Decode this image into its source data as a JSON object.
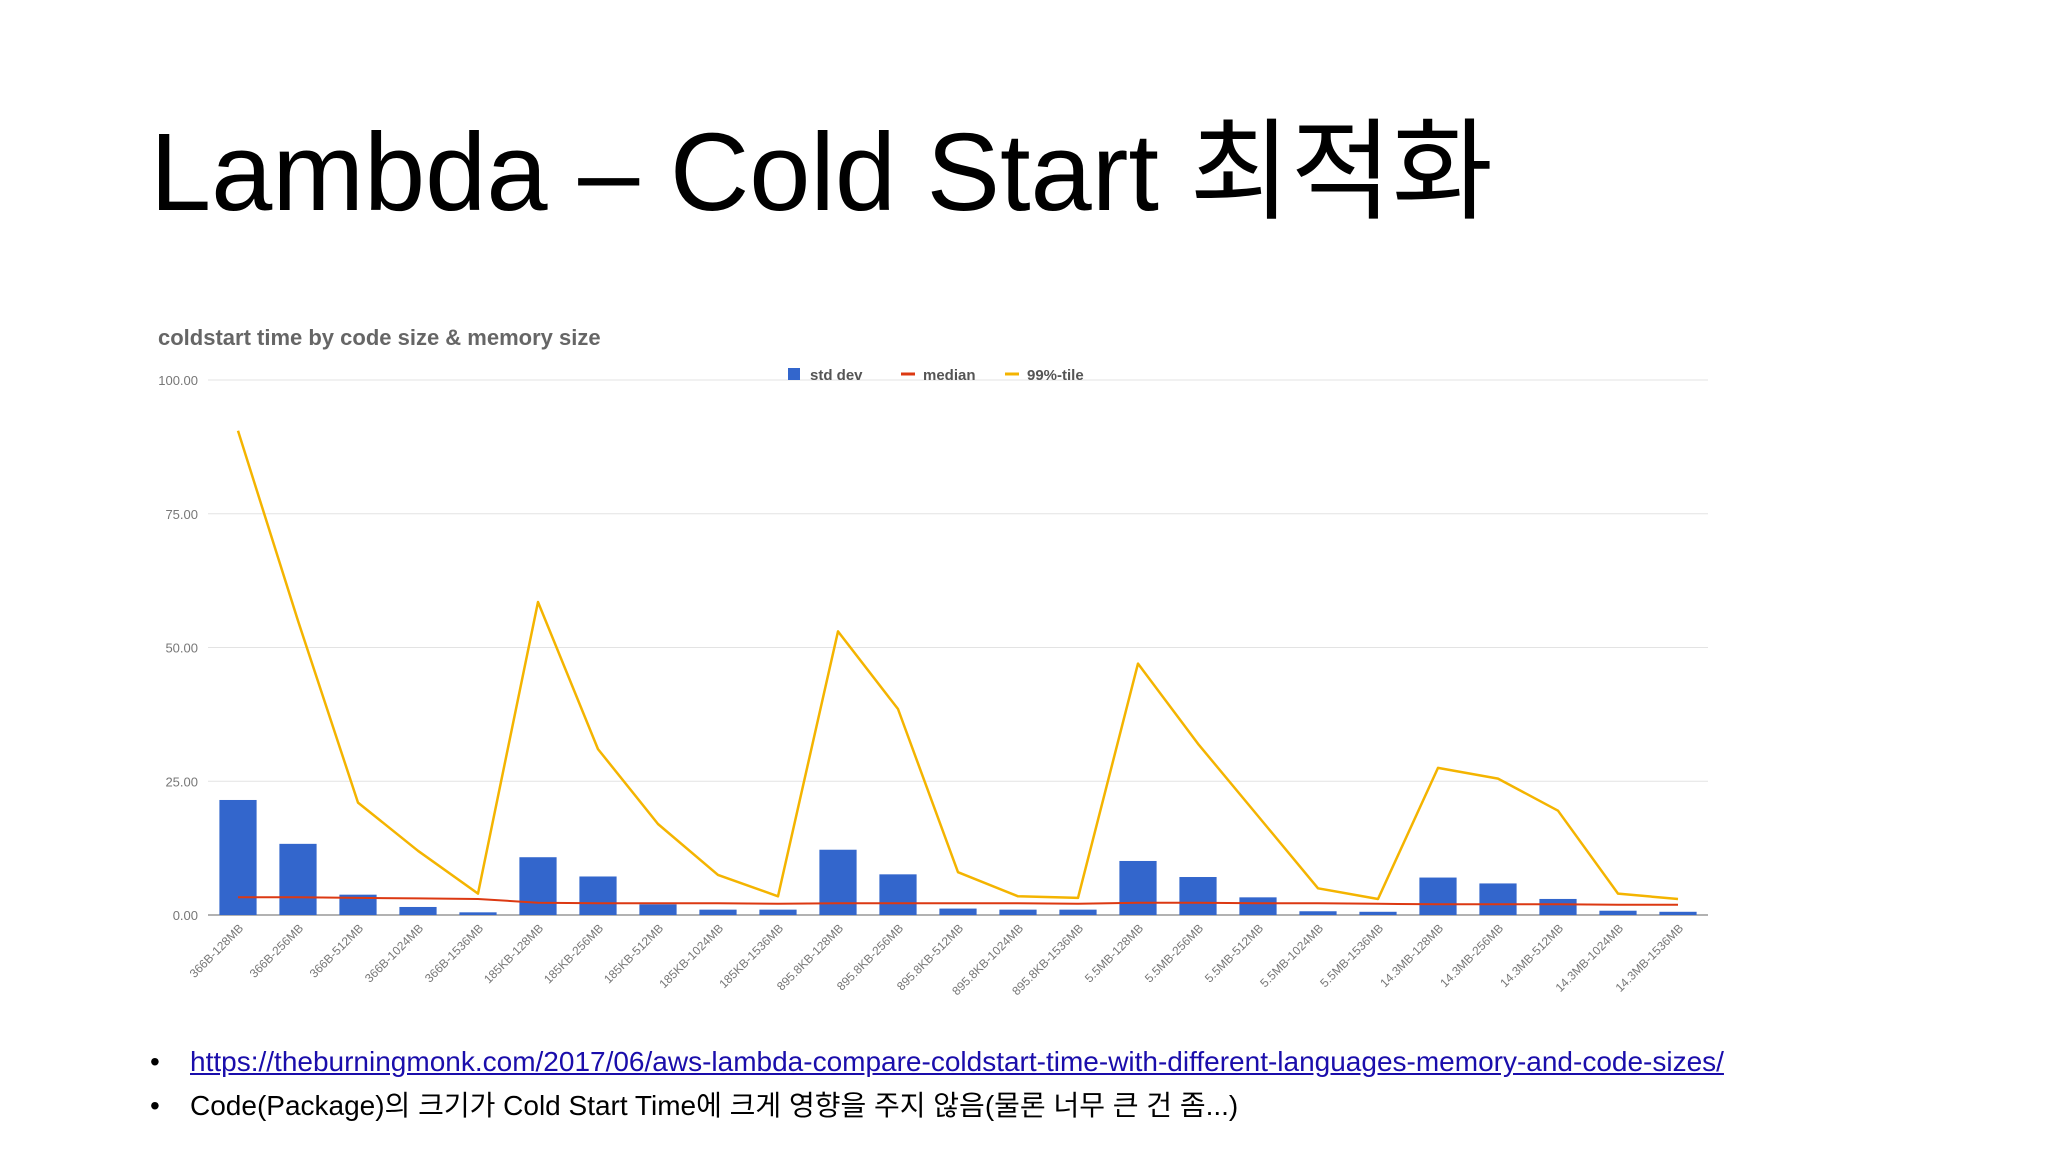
{
  "slide": {
    "title": "Lambda – Cold Start 최적화",
    "bullets": [
      {
        "text": "https://theburningmonk.com/2017/06/aws-lambda-compare-coldstart-time-with-different-languages-memory-and-code-sizes/",
        "is_link": true
      },
      {
        "text": "Code(Package)의 크기가 Cold Start Time에 크게 영향을 주지 않음(물론 너무 큰 건 좀...)",
        "is_link": false
      }
    ],
    "bullet_glyph": "•"
  },
  "colors": {
    "std_dev": "#3366cc",
    "median": "#dc3912",
    "p99": "#f4b400",
    "grid": "#e3e3e3",
    "axis_text": "#777777",
    "chart_title": "#666666",
    "link": "#1a0dab"
  },
  "chart_data": {
    "type": "bar",
    "title": "coldstart time by code size & memory size",
    "xlabel": "",
    "ylabel": "",
    "ylim": [
      0,
      100
    ],
    "y_ticks": [
      "0.00",
      "25.00",
      "50.00",
      "75.00",
      "100.00"
    ],
    "y_tick_values": [
      0,
      25,
      50,
      75,
      100
    ],
    "grid": true,
    "legend": "top-center",
    "categories": [
      "366B-128MB",
      "366B-256MB",
      "366B-512MB",
      "366B-1024MB",
      "366B-1536MB",
      "185KB-128MB",
      "185KB-256MB",
      "185KB-512MB",
      "185KB-1024MB",
      "185KB-1536MB",
      "895.8KB-128MB",
      "895.8KB-256MB",
      "895.8KB-512MB",
      "895.8KB-1024MB",
      "895.8KB-1536MB",
      "5.5MB-128MB",
      "5.5MB-256MB",
      "5.5MB-512MB",
      "5.5MB-1024MB",
      "5.5MB-1536MB",
      "14.3MB-128MB",
      "14.3MB-256MB",
      "14.3MB-512MB",
      "14.3MB-1024MB",
      "14.3MB-1536MB"
    ],
    "series": [
      {
        "name": "std dev",
        "type": "bar",
        "values": [
          21.5,
          13.3,
          3.8,
          1.5,
          0.5,
          10.8,
          7.2,
          2.0,
          1.0,
          1.0,
          12.2,
          7.6,
          1.2,
          1.0,
          1.0,
          10.1,
          7.1,
          3.3,
          0.7,
          0.6,
          7.0,
          5.9,
          3.0,
          0.8,
          0.6
        ]
      },
      {
        "name": "median",
        "type": "line",
        "values": [
          3.3,
          3.3,
          3.2,
          3.1,
          3.0,
          2.3,
          2.2,
          2.2,
          2.2,
          2.1,
          2.2,
          2.2,
          2.2,
          2.2,
          2.1,
          2.3,
          2.3,
          2.2,
          2.2,
          2.1,
          2.0,
          2.0,
          2.0,
          1.9,
          1.9
        ]
      },
      {
        "name": "99%-tile",
        "type": "line",
        "values": [
          90.5,
          55.0,
          21.0,
          12.0,
          4.0,
          58.5,
          31.0,
          17.0,
          7.5,
          3.5,
          53.0,
          38.5,
          8.0,
          3.5,
          3.2,
          47.0,
          32.0,
          18.5,
          5.0,
          3.0,
          27.5,
          25.5,
          19.5,
          4.0,
          3.0
        ]
      }
    ]
  }
}
